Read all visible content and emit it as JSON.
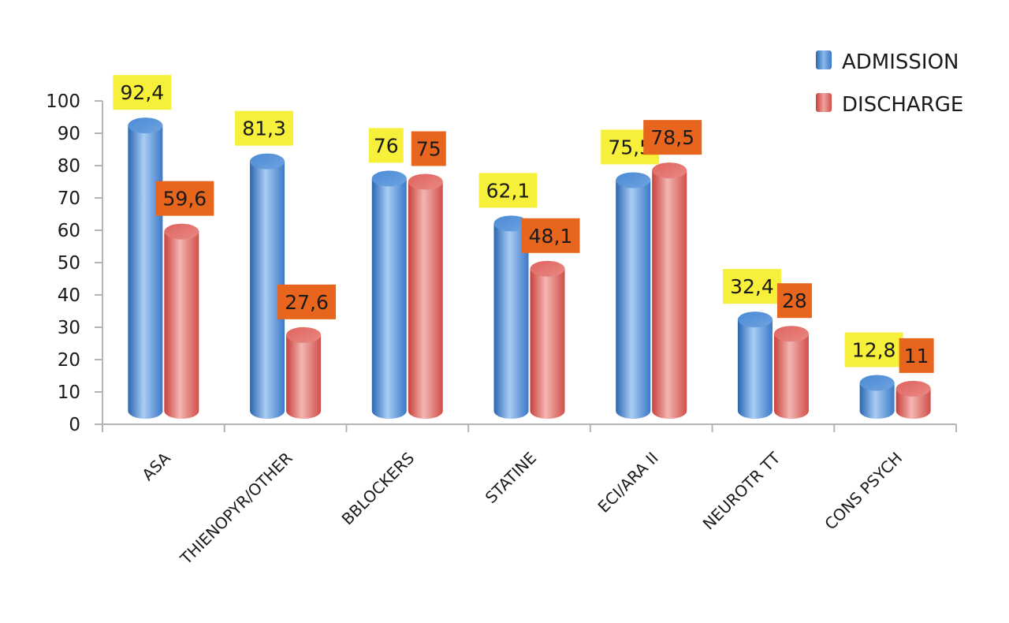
{
  "chart_data": {
    "type": "bar",
    "title": "",
    "xlabel": "",
    "ylabel": "",
    "ylim": [
      0,
      100
    ],
    "yticks": [
      0,
      10,
      20,
      30,
      40,
      50,
      60,
      70,
      80,
      90,
      100
    ],
    "categories": [
      "ASA",
      "THIENOPYR/OTHER",
      "BBLOCKERS",
      "STATINE",
      "ECI/ARA II",
      "NEUROTR TT",
      "CONS PSYCH"
    ],
    "series": [
      {
        "name": "ADMISSION",
        "values": [
          92.4,
          81.3,
          76,
          62.1,
          75.5,
          32.4,
          12.8
        ],
        "labels": [
          "92,4",
          "81,3",
          "76",
          "62,1",
          "75,5",
          "32,4",
          "12,8"
        ],
        "color": "#3f7fcf",
        "label_bg": "#f7f03a"
      },
      {
        "name": "DISCHARGE",
        "values": [
          59.6,
          27.6,
          75,
          48.1,
          78.5,
          28,
          11
        ],
        "labels": [
          "59,6",
          "27,6",
          "75",
          "48,1",
          "78,5",
          "28",
          "11"
        ],
        "color": "#d9534f",
        "label_bg": "#e8651e"
      }
    ],
    "legend": {
      "position": "top-right"
    },
    "grid": false,
    "style": "3d-cylinder"
  }
}
